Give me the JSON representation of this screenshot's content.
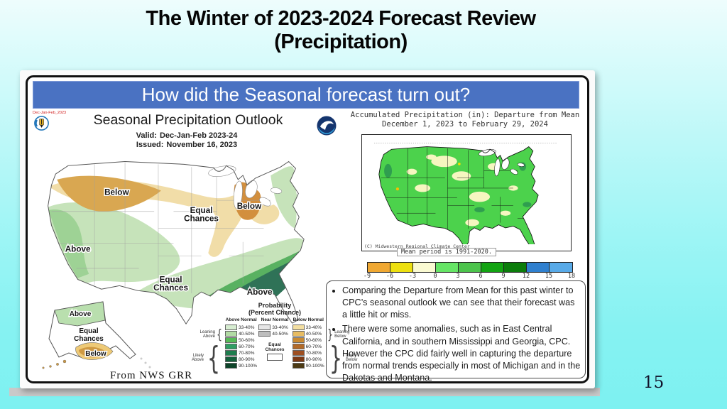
{
  "slide": {
    "title_line1": "The Winter of 2023-2024 Forecast Review",
    "title_line2": "(Precipitation)",
    "page_number": "15"
  },
  "panel": {
    "header": "How did the Seasonal forecast turn out?"
  },
  "outlook": {
    "corner_tag": "Dec-Jan-Feb_2023",
    "title": "Seasonal Precipitation Outlook",
    "valid_label": "Valid:",
    "valid_value": "Dec-Jan-Feb 2023-24",
    "issued_label": "Issued:",
    "issued_value": "November 16, 2023",
    "map_labels": {
      "below_nw": "Below",
      "below_mi": "Below",
      "above_west": "Above",
      "above_se": "Above",
      "equal_line1": "Equal",
      "equal_line2": "Chances",
      "ak_above": "Above",
      "ak_below": "Below"
    },
    "attribution": "From NWS GRR",
    "legend": {
      "title_line1": "Probability",
      "title_line2": "(Percent Chance)",
      "col_above": "Above Normal",
      "col_near": "Near Normal",
      "col_below": "Below Normal",
      "above_rows": [
        {
          "label": "33-40%",
          "color": "#d6ecd0"
        },
        {
          "label": "40-50%",
          "color": "#b2dba4"
        },
        {
          "label": "50-60%",
          "color": "#57bb57"
        },
        {
          "label": "60-70%",
          "color": "#2f9e63"
        },
        {
          "label": "70-80%",
          "color": "#1e7d4e"
        },
        {
          "label": "80-90%",
          "color": "#14603b"
        },
        {
          "label": "90-100%",
          "color": "#0d4429"
        }
      ],
      "near_rows": [
        {
          "label": "33-40%",
          "color": "#e6e6e6"
        },
        {
          "label": "40-50%",
          "color": "#bdbdbd"
        }
      ],
      "equal_label_line1": "Equal",
      "equal_label_line2": "Chances",
      "below_rows": [
        {
          "label": "33-40%",
          "color": "#f3dfa2"
        },
        {
          "label": "40-50%",
          "color": "#e7bc62"
        },
        {
          "label": "50-60%",
          "color": "#c98a32"
        },
        {
          "label": "60-70%",
          "color": "#b26a28"
        },
        {
          "label": "70-80%",
          "color": "#9e4f22"
        },
        {
          "label": "80-90%",
          "color": "#7c3a16"
        },
        {
          "label": "90-100%",
          "color": "#4c3a14"
        }
      ],
      "brace_leaning_above": "Leaning Above",
      "brace_likely_above": "Likely Above",
      "brace_leaning_below": "Leaning Below",
      "brace_likely_below": "Likely Below"
    }
  },
  "verification": {
    "title_line1": "Accumulated Precipitation (in): Departure from Mean",
    "title_line2": "December 1, 2023 to February 29, 2024",
    "copyright": "(C) Midwestern Regional Climate Center",
    "mean_period": "Mean period is 1991-2020.",
    "colorbar": {
      "ticks": [
        "-9",
        "-6",
        "-3",
        "0",
        "3",
        "6",
        "9",
        "12",
        "15",
        "18"
      ],
      "colors": [
        "#f0a832",
        "#ede010",
        "#fafad2",
        "#66e566",
        "#4cc44c",
        "#12a412",
        "#0b7d0b",
        "#2f80cf",
        "#58aae8"
      ]
    }
  },
  "bullets": {
    "items": [
      "Comparing the Departure from Mean for this past winter to CPC’s seasonal outlook we can see that their forecast was a little hit or miss.",
      "There were some anomalies, such as in East Central California, and in southern Mississippi and Georgia, CPC. However the CPC did fairly well in capturing the departure from normal trends especially in most of Michigan and in the Dakotas and Montana."
    ]
  }
}
